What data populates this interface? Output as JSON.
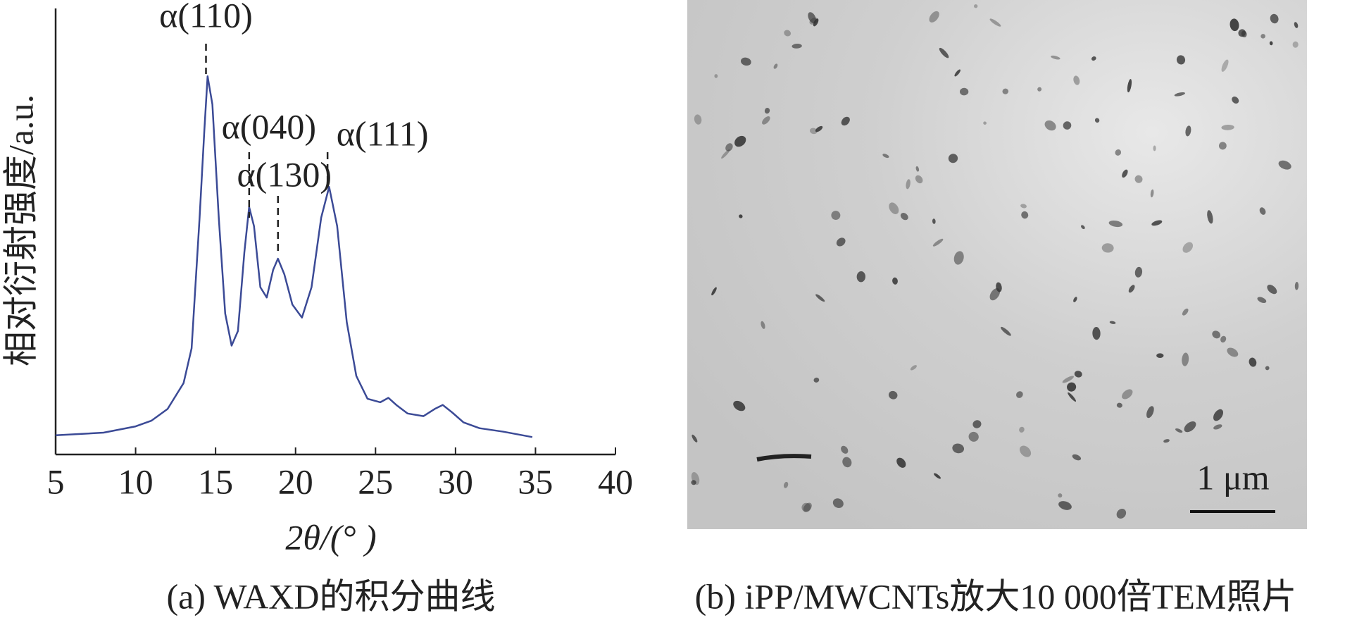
{
  "chart_data": {
    "type": "line",
    "xlabel": "2θ/(° )",
    "ylabel": "相对衍射强度/a.u.",
    "caption": "(a) WAXD的积分曲线",
    "xlim": [
      5,
      40
    ],
    "xticks": [
      5,
      10,
      15,
      20,
      25,
      30,
      35,
      40
    ],
    "ylim": [
      0,
      100
    ],
    "series": [
      {
        "color": "#3b4a96",
        "x": [
          5,
          8,
          10,
          11,
          12,
          13,
          13.5,
          14,
          14.3,
          14.5,
          14.8,
          15.2,
          15.6,
          16,
          16.4,
          16.8,
          17.1,
          17.4,
          17.8,
          18.2,
          18.6,
          18.9,
          19.3,
          19.8,
          20.4,
          21,
          21.6,
          22.1,
          22.6,
          23.2,
          23.8,
          24.5,
          25.3,
          25.8,
          26.3,
          27,
          28,
          28.7,
          29.2,
          29.8,
          30.5,
          31.5,
          33,
          34.8
        ],
        "values": [
          4.3,
          4.9,
          6.3,
          7.6,
          10.2,
          16,
          23.8,
          53,
          72.7,
          84.8,
          78.5,
          53,
          31.6,
          24.4,
          27.7,
          45.3,
          55.5,
          51.2,
          37.5,
          35.2,
          41.4,
          43.9,
          40.4,
          33.6,
          30.7,
          37.5,
          53.1,
          60,
          51.2,
          29.7,
          17.6,
          12.5,
          11.7,
          12.7,
          11.1,
          9.2,
          8.6,
          10.2,
          11.1,
          9.4,
          7.2,
          5.9,
          5.1,
          3.9
        ]
      }
    ],
    "annotations": [
      {
        "text": "α(110)",
        "x": 14.4
      },
      {
        "text": "α(040)",
        "x": 17.1
      },
      {
        "text": "α(130)",
        "x": 18.9
      },
      {
        "text": "α(111)",
        "x": 22
      }
    ]
  },
  "image_panel": {
    "scale_bar": "1 μm",
    "caption": "(b) iPP/MWCNTs放大10 000倍TEM照片"
  }
}
